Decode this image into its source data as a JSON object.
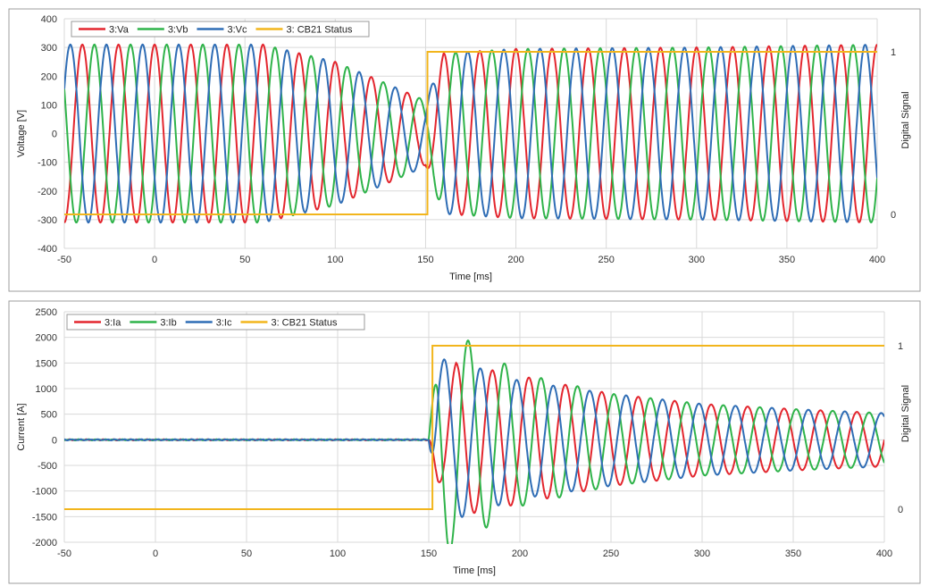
{
  "colors": {
    "phase_a": "#e3262e",
    "phase_b": "#2fb34a",
    "phase_c": "#2f6db5",
    "status": "#f2b51c"
  },
  "chart_data": [
    {
      "type": "line",
      "title": "",
      "xlabel": "Time [ms]",
      "ylabel": "Voltage [V]",
      "y2label": "Digital Signal",
      "xlim": [
        -50,
        400
      ],
      "ylim": [
        -400,
        400
      ],
      "xticks": [
        -50,
        0,
        50,
        100,
        150,
        200,
        250,
        300,
        350,
        400
      ],
      "yticks": [
        -400,
        -300,
        -200,
        -100,
        0,
        100,
        200,
        300,
        400
      ],
      "y2ticks": [
        0,
        1
      ],
      "grid": true,
      "legend": "top-left",
      "series": [
        {
          "name": "3:Va",
          "axis": "left",
          "kind": "sine",
          "phase_deg": 90,
          "freq_hz": 50,
          "envelope": [
            [
              -50,
              310
            ],
            [
              60,
              310
            ],
            [
              100,
              250
            ],
            [
              130,
              170
            ],
            [
              148,
              120
            ],
            [
              150,
              110
            ],
            [
              160,
              280
            ],
            [
              200,
              295
            ],
            [
              300,
              300
            ],
            [
              400,
              310
            ]
          ],
          "color_key": "phase_a"
        },
        {
          "name": "3:Vb",
          "axis": "left",
          "kind": "sine",
          "phase_deg": -30,
          "freq_hz": 50,
          "envelope": [
            [
              -50,
              310
            ],
            [
              60,
              310
            ],
            [
              100,
              250
            ],
            [
              130,
              170
            ],
            [
              148,
              120
            ],
            [
              150,
              110
            ],
            [
              160,
              280
            ],
            [
              200,
              295
            ],
            [
              300,
              300
            ],
            [
              400,
              310
            ]
          ],
          "color_key": "phase_b"
        },
        {
          "name": "3:Vc",
          "axis": "left",
          "kind": "sine",
          "phase_deg": 210,
          "freq_hz": 50,
          "envelope": [
            [
              -50,
              310
            ],
            [
              60,
              310
            ],
            [
              100,
              250
            ],
            [
              130,
              170
            ],
            [
              148,
              120
            ],
            [
              150,
              110
            ],
            [
              160,
              280
            ],
            [
              200,
              295
            ],
            [
              300,
              300
            ],
            [
              400,
              310
            ]
          ],
          "color_key": "phase_c"
        },
        {
          "name": "3: CB21 Status",
          "axis": "right",
          "kind": "step",
          "points": [
            [
              -50,
              0
            ],
            [
              151,
              0
            ],
            [
              151,
              1
            ],
            [
              400,
              1
            ]
          ],
          "color_key": "status"
        }
      ]
    },
    {
      "type": "line",
      "title": "",
      "xlabel": "Time [ms]",
      "ylabel": "Current [A]",
      "y2label": "Digital Signal",
      "xlim": [
        -50,
        400
      ],
      "ylim": [
        -2000,
        2500
      ],
      "xticks": [
        -50,
        0,
        50,
        100,
        150,
        200,
        250,
        300,
        350,
        400
      ],
      "yticks": [
        -2000,
        -1500,
        -1000,
        -500,
        0,
        500,
        1000,
        1500,
        2000,
        2500
      ],
      "y2ticks": [
        0,
        1
      ],
      "grid": true,
      "legend": "top-left",
      "series": [
        {
          "name": "3:Ia",
          "axis": "left",
          "kind": "sine",
          "phase_deg": 0,
          "freq_hz": 50,
          "start": 150,
          "envelope": [
            [
              -50,
              20
            ],
            [
              150,
              20
            ],
            [
              155,
              800
            ],
            [
              165,
              1500
            ],
            [
              200,
              1250
            ],
            [
              250,
              900
            ],
            [
              300,
              700
            ],
            [
              350,
              600
            ],
            [
              400,
              520
            ]
          ],
          "color_key": "phase_a"
        },
        {
          "name": "3:Ib",
          "axis": "left",
          "kind": "sine",
          "phase_deg": -120,
          "freq_hz": 50,
          "start": 150,
          "envelope": [
            [
              -50,
              20
            ],
            [
              150,
              20
            ],
            [
              155,
              1800
            ],
            [
              160,
              2200
            ],
            [
              200,
              1300
            ],
            [
              250,
              900
            ],
            [
              300,
              700
            ],
            [
              350,
              600
            ],
            [
              400,
              520
            ]
          ],
          "color_key": "phase_b"
        },
        {
          "name": "3:Ic",
          "axis": "left",
          "kind": "sine",
          "phase_deg": 120,
          "freq_hz": 50,
          "start": 150,
          "envelope": [
            [
              -50,
              20
            ],
            [
              150,
              20
            ],
            [
              155,
              1500
            ],
            [
              160,
              1600
            ],
            [
              200,
              1150
            ],
            [
              250,
              900
            ],
            [
              300,
              700
            ],
            [
              350,
              600
            ],
            [
              400,
              520
            ]
          ],
          "color_key": "phase_c"
        },
        {
          "name": "3: CB21 Status",
          "axis": "right",
          "kind": "step",
          "points": [
            [
              -50,
              0
            ],
            [
              152,
              0
            ],
            [
              152,
              1
            ],
            [
              400,
              1
            ]
          ],
          "color_key": "status"
        }
      ]
    }
  ]
}
